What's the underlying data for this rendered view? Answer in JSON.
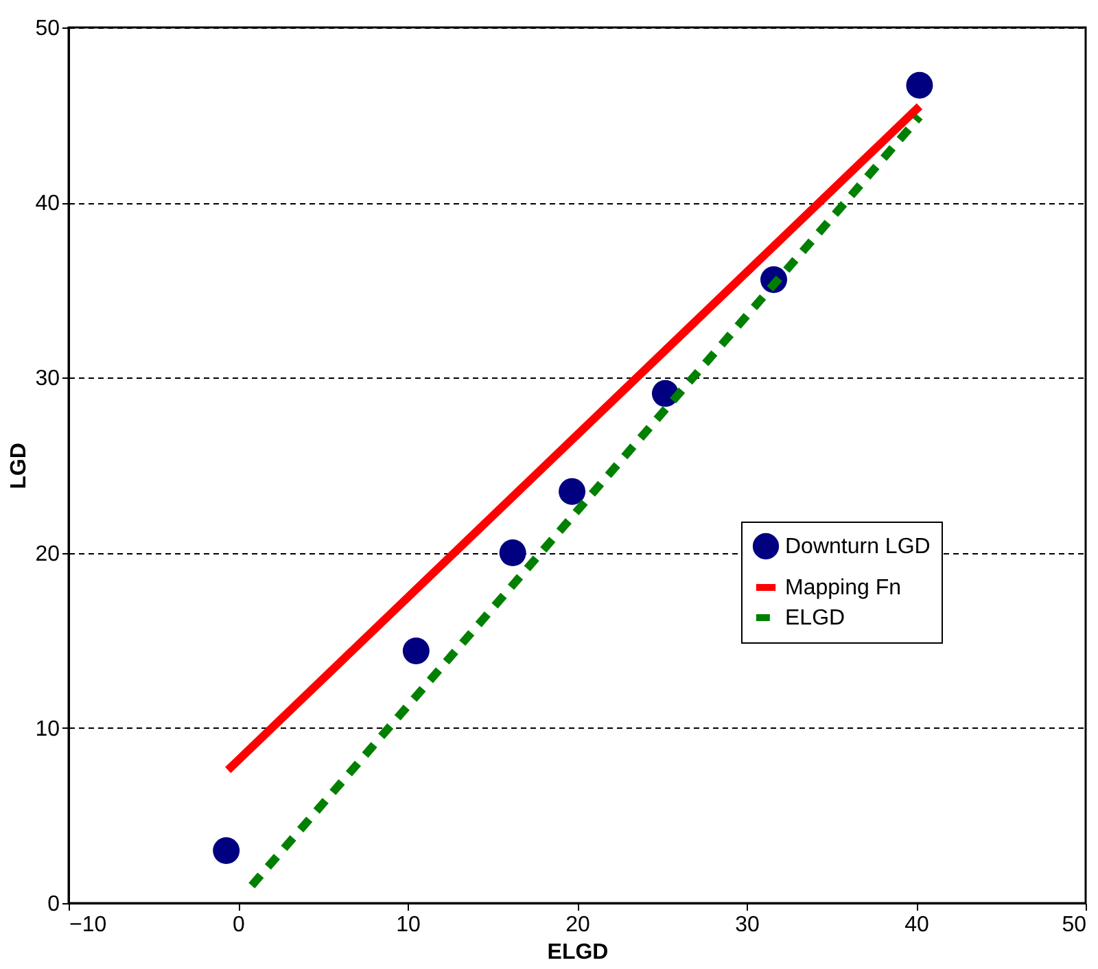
{
  "chart_data": {
    "type": "scatter",
    "xlabel": "ELGD",
    "ylabel": "LGD",
    "xlim": [
      -10,
      50
    ],
    "ylim": [
      0,
      50
    ],
    "xticks": [
      -10,
      0,
      10,
      20,
      30,
      40,
      50
    ],
    "yticks": [
      0,
      10,
      20,
      30,
      40,
      50
    ],
    "grid": "y",
    "legend": "right",
    "series": [
      {
        "name": "Downturn LGD",
        "type": "scatter",
        "marker": "circle",
        "color": "#000080",
        "x": [
          -0.7,
          10.5,
          16.2,
          19.7,
          25.2,
          31.6,
          40.2
        ],
        "values": [
          3.0,
          14.4,
          20.0,
          23.5,
          29.1,
          35.6,
          46.7
        ]
      },
      {
        "name": "Mapping Fn",
        "type": "line",
        "line_style": "solid",
        "color": "#ff0000",
        "x": [
          -0.6,
          40.2
        ],
        "values": [
          7.6,
          45.5
        ]
      },
      {
        "name": "ELGD",
        "type": "line",
        "line_style": "dashed",
        "color": "#008000",
        "x": [
          0.8,
          40.2
        ],
        "values": [
          1.0,
          44.9
        ]
      }
    ]
  }
}
